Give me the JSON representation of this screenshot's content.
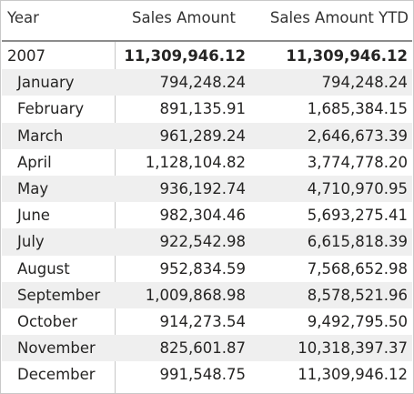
{
  "table": {
    "headers": {
      "year": "Year",
      "sales_amount": "Sales Amount",
      "sales_amount_ytd": "Sales Amount YTD"
    },
    "rows": [
      {
        "label": "2007",
        "sales_amount": "11,309,946.12",
        "sales_amount_ytd": "11,309,946.12",
        "level": "year"
      },
      {
        "label": "January",
        "sales_amount": "794,248.24",
        "sales_amount_ytd": "794,248.24",
        "level": "month"
      },
      {
        "label": "February",
        "sales_amount": "891,135.91",
        "sales_amount_ytd": "1,685,384.15",
        "level": "month"
      },
      {
        "label": "March",
        "sales_amount": "961,289.24",
        "sales_amount_ytd": "2,646,673.39",
        "level": "month"
      },
      {
        "label": "April",
        "sales_amount": "1,128,104.82",
        "sales_amount_ytd": "3,774,778.20",
        "level": "month"
      },
      {
        "label": "May",
        "sales_amount": "936,192.74",
        "sales_amount_ytd": "4,710,970.95",
        "level": "month"
      },
      {
        "label": "June",
        "sales_amount": "982,304.46",
        "sales_amount_ytd": "5,693,275.41",
        "level": "month"
      },
      {
        "label": "July",
        "sales_amount": "922,542.98",
        "sales_amount_ytd": "6,615,818.39",
        "level": "month"
      },
      {
        "label": "August",
        "sales_amount": "952,834.59",
        "sales_amount_ytd": "7,568,652.98",
        "level": "month"
      },
      {
        "label": "September",
        "sales_amount": "1,009,868.98",
        "sales_amount_ytd": "8,578,521.96",
        "level": "month"
      },
      {
        "label": "October",
        "sales_amount": "914,273.54",
        "sales_amount_ytd": "9,492,795.50",
        "level": "month"
      },
      {
        "label": "November",
        "sales_amount": "825,601.87",
        "sales_amount_ytd": "10,318,397.37",
        "level": "month"
      },
      {
        "label": "December",
        "sales_amount": "991,548.75",
        "sales_amount_ytd": "11,309,946.12",
        "level": "month"
      }
    ]
  },
  "colors": {
    "row_stripe": "#efefef",
    "header_rule": "#8c8c8c",
    "grid_line": "#c8c8c8",
    "text": "#252423"
  }
}
